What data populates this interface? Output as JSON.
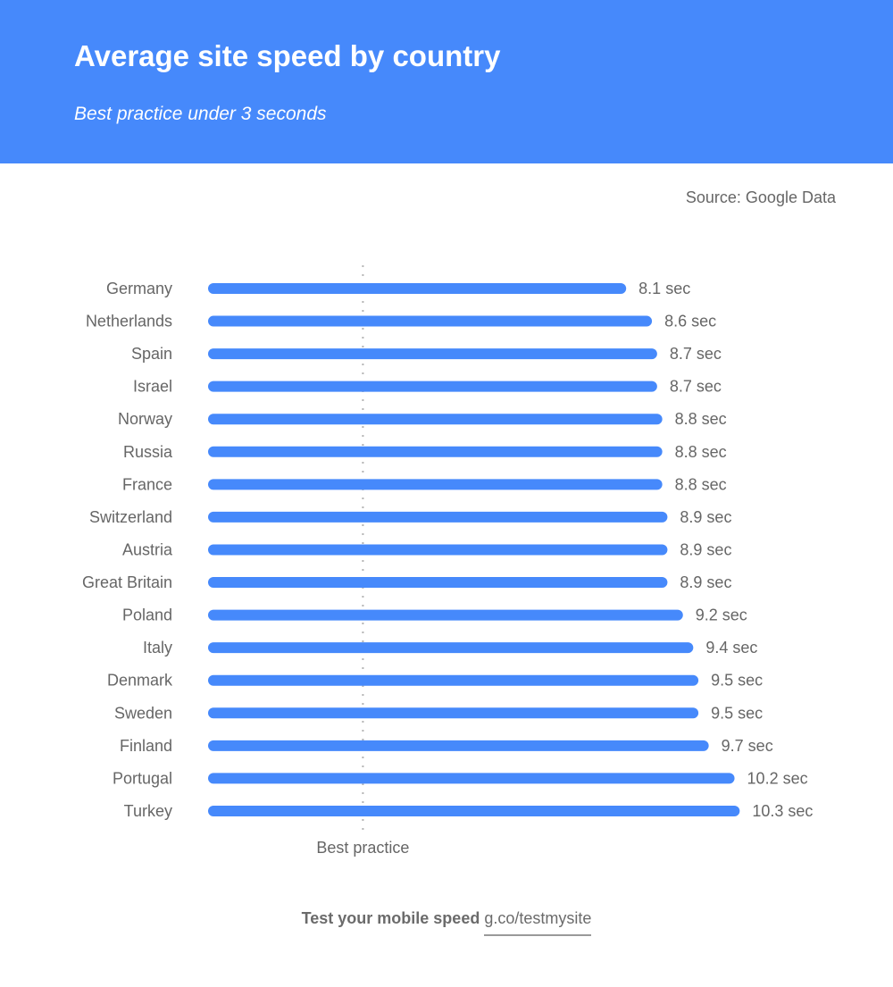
{
  "header": {
    "title": "Average site speed by country",
    "subtitle": "Best practice under 3 seconds"
  },
  "source": "Source: Google Data",
  "footer": {
    "prefix": "Test your mobile speed",
    "link": "g.co/testmysite"
  },
  "chart_data": {
    "type": "bar",
    "orientation": "horizontal",
    "categories": [
      "Germany",
      "Netherlands",
      "Spain",
      "Israel",
      "Norway",
      "Russia",
      "France",
      "Switzerland",
      "Austria",
      "Great Britain",
      "Poland",
      "Italy",
      "Denmark",
      "Sweden",
      "Finland",
      "Portugal",
      "Turkey"
    ],
    "values": [
      8.1,
      8.6,
      8.7,
      8.7,
      8.8,
      8.8,
      8.8,
      8.9,
      8.9,
      8.9,
      9.2,
      9.4,
      9.5,
      9.5,
      9.7,
      10.2,
      10.3
    ],
    "value_suffix": " sec",
    "reference_line": {
      "value": 3,
      "label": "Best practice"
    },
    "bar_color": "#4689fb",
    "grid": false
  }
}
